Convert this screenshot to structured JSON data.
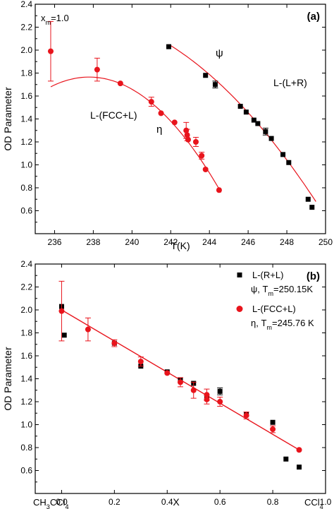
{
  "chart_data": [
    {
      "type": "scatter",
      "panel_label": "(a)",
      "annotation": "x",
      "annotation_sub": "m",
      "annotation_tail": "=1.0",
      "xlabel": "T(K)",
      "ylabel": "OD Parameter",
      "xlim": [
        235,
        250
      ],
      "ylim": [
        0.4,
        2.4
      ],
      "xticks": [
        236,
        238,
        240,
        242,
        244,
        246,
        248,
        250
      ],
      "yticks": [
        0.6,
        0.8,
        1.0,
        1.2,
        1.4,
        1.6,
        1.8,
        2.0,
        2.2,
        2.4
      ],
      "grid": false,
      "region_labels": {
        "left": "L-(FCC+L)",
        "right": "L-(L+R)"
      },
      "series": [
        {
          "symbol": "η",
          "marker": "circle",
          "color": "#e8141c",
          "x": [
            235.8,
            238.2,
            239.4,
            241.0,
            241.5,
            242.2,
            242.8,
            242.85,
            242.9,
            243.3,
            243.6,
            243.8,
            244.5
          ],
          "y": [
            1.99,
            1.83,
            1.71,
            1.55,
            1.45,
            1.37,
            1.3,
            1.26,
            1.22,
            1.2,
            1.08,
            0.96,
            0.78
          ],
          "err": [
            0.26,
            0.1,
            0,
            0.04,
            0,
            0,
            0.07,
            0.05,
            0,
            0.04,
            0.03,
            0,
            0
          ],
          "fit": {
            "type": "quadratic",
            "x_range": [
              235.8,
              244.6
            ],
            "y_at": [
              [
                235.8,
                1.68
              ],
              [
                237.7,
                1.765
              ],
              [
                244.6,
                0.76
              ]
            ]
          }
        },
        {
          "symbol": "ψ",
          "marker": "square",
          "color": "#000000",
          "x": [
            241.9,
            243.8,
            244.3,
            245.6,
            245.9,
            246.3,
            246.5,
            246.9,
            247.2,
            247.8,
            248.1,
            249.1,
            249.3
          ],
          "y": [
            2.03,
            1.78,
            1.7,
            1.51,
            1.46,
            1.39,
            1.36,
            1.29,
            1.23,
            1.09,
            1.02,
            0.7,
            0.63
          ],
          "err": [
            0,
            0,
            0.03,
            0,
            0,
            0,
            0,
            0.03,
            0,
            0,
            0,
            0,
            0
          ],
          "fit": {
            "type": "quadratic",
            "x_range": [
              241.9,
              249.5
            ],
            "y_at": [
              [
                241.9,
                2.05
              ],
              [
                245.7,
                1.51
              ],
              [
                249.5,
                0.68
              ]
            ]
          }
        }
      ]
    },
    {
      "type": "scatter",
      "panel_label": "(b)",
      "xlabel": "X",
      "ylabel": "OD Parameter",
      "x_left_label": {
        "pre": "CH",
        "s1": "3",
        "mid": "CCl",
        "s2": "4"
      },
      "x_right_label": {
        "pre": "CCl",
        "s1": "4"
      },
      "xlim": [
        -0.1,
        1.0
      ],
      "ylim": [
        0.4,
        2.4
      ],
      "xticks": [
        "0.0",
        "0.2",
        "0.4",
        "0.6",
        "0.8",
        "1.0"
      ],
      "yticks": [
        0.6,
        0.8,
        1.0,
        1.2,
        1.4,
        1.6,
        1.8,
        2.0,
        2.2,
        2.4
      ],
      "grid": false,
      "legend_position": "top-right",
      "series": [
        {
          "name": "L-(R+L)",
          "legend_sub_pre": "ψ, T",
          "legend_sub_s": "m",
          "legend_sub_post": "=250.15K",
          "marker": "square",
          "color": "#000000",
          "x": [
            0.0,
            0.01,
            0.2,
            0.3,
            0.4,
            0.45,
            0.5,
            0.55,
            0.6,
            0.7,
            0.8,
            0.85,
            0.9
          ],
          "y": [
            2.03,
            1.78,
            1.71,
            1.51,
            1.46,
            1.39,
            1.36,
            1.23,
            1.29,
            1.09,
            1.02,
            0.7,
            0.63
          ],
          "err": [
            0,
            0,
            0,
            0,
            0,
            0,
            0,
            0,
            0.03,
            0,
            0,
            0,
            0
          ]
        },
        {
          "name": "L-(FCC+L)",
          "legend_sub_pre": "η, T",
          "legend_sub_s": "m",
          "legend_sub_post": "=245.76 K",
          "marker": "circle",
          "color": "#e8141c",
          "x": [
            0.0,
            0.1,
            0.2,
            0.3,
            0.4,
            0.45,
            0.5,
            0.55,
            0.55,
            0.6,
            0.7,
            0.8,
            0.9
          ],
          "y": [
            1.99,
            1.83,
            1.71,
            1.55,
            1.45,
            1.37,
            1.3,
            1.26,
            1.22,
            1.2,
            1.08,
            0.96,
            0.78
          ],
          "err": [
            0.26,
            0.1,
            0.03,
            0.04,
            0,
            0.04,
            0.07,
            0.05,
            0.04,
            0.04,
            0.03,
            0.03,
            0
          ]
        }
      ],
      "fit": {
        "type": "linear",
        "color": "#e8141c",
        "x_range": [
          0.0,
          0.9
        ],
        "y_range": [
          2.0,
          0.78
        ]
      }
    }
  ]
}
